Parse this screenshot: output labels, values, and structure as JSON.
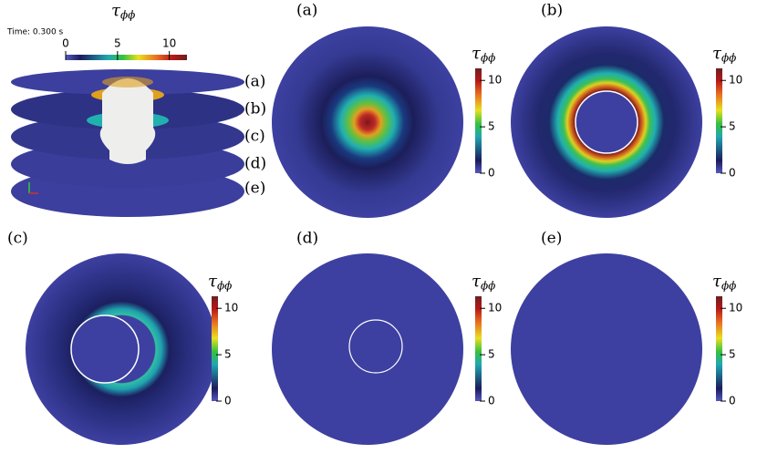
{
  "overview": {
    "time_label": "Time: 0.300 s",
    "colorbar": {
      "symbol": "τ",
      "subscript": "ϕϕ",
      "ticks": [
        0,
        5,
        10
      ],
      "range": [
        0,
        11.7
      ]
    },
    "slice_labels": [
      "(a)",
      "(b)",
      "(c)",
      "(d)",
      "(e)"
    ]
  },
  "panels": [
    {
      "label": "(a)",
      "colorbar": {
        "symbol": "τ",
        "subscript": "ϕϕ",
        "ticks": [
          0,
          5,
          10
        ],
        "range": [
          0,
          11.3
        ]
      }
    },
    {
      "label": "(b)",
      "colorbar": {
        "symbol": "τ",
        "subscript": "ϕϕ",
        "ticks": [
          0,
          5,
          10
        ],
        "range": [
          0,
          11.3
        ]
      }
    },
    {
      "label": "(c)",
      "colorbar": {
        "symbol": "τ",
        "subscript": "ϕϕ",
        "ticks": [
          0,
          5,
          10
        ],
        "range": [
          0,
          11.3
        ]
      }
    },
    {
      "label": "(d)",
      "colorbar": {
        "symbol": "τ",
        "subscript": "ϕϕ",
        "ticks": [
          0,
          5,
          10
        ],
        "range": [
          0,
          11.3
        ]
      }
    },
    {
      "label": "(e)",
      "colorbar": {
        "symbol": "τ",
        "subscript": "ϕϕ",
        "ticks": [
          0,
          5,
          10
        ],
        "range": [
          0,
          11.3
        ]
      }
    }
  ]
}
